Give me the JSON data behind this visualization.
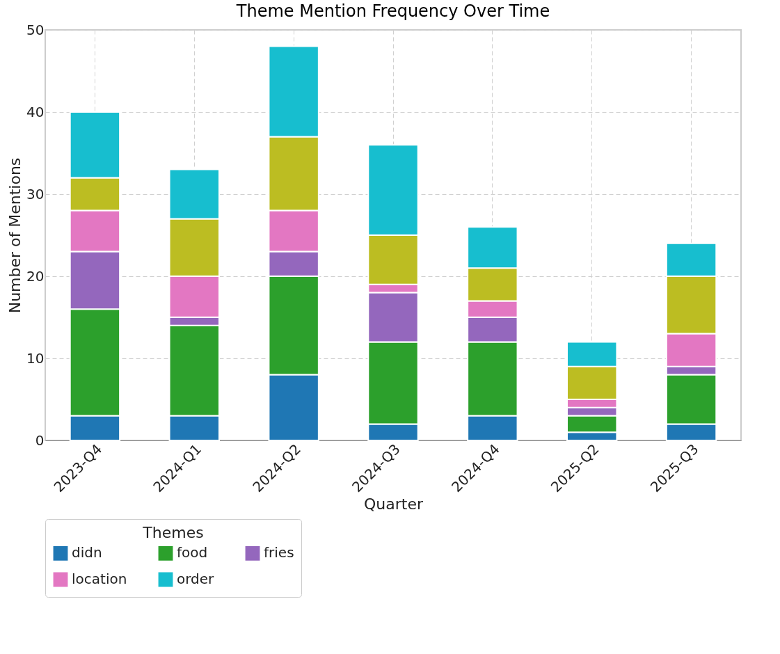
{
  "chart_data": {
    "type": "bar",
    "title": "Theme Mention Frequency Over Time",
    "xlabel": "Quarter",
    "ylabel": "Number of Mentions",
    "legend_title": "Themes",
    "categories": [
      "2023-Q4",
      "2024-Q1",
      "2024-Q2",
      "2024-Q3",
      "2024-Q4",
      "2025-Q2",
      "2025-Q3"
    ],
    "series": [
      {
        "name": "didn",
        "color": "#1f77b4",
        "values": [
          3,
          3,
          8,
          2,
          3,
          1,
          2
        ]
      },
      {
        "name": "food",
        "color": "#2ca02c",
        "values": [
          13,
          11,
          12,
          10,
          9,
          2,
          6
        ]
      },
      {
        "name": "fries",
        "color": "#9467bd",
        "values": [
          7,
          1,
          3,
          6,
          3,
          1,
          1
        ]
      },
      {
        "name": "location",
        "color": "#e377c2",
        "values": [
          5,
          5,
          5,
          1,
          2,
          1,
          4
        ]
      },
      {
        "color": "#bcbd22",
        "values": [
          4,
          7,
          9,
          6,
          4,
          4,
          7
        ]
      },
      {
        "name": "order",
        "color": "#17becf",
        "values": [
          8,
          6,
          11,
          11,
          5,
          3,
          4
        ]
      }
    ],
    "stacked": true,
    "ylim": [
      0,
      50
    ],
    "yticks": [
      0,
      10,
      20,
      30,
      40,
      50
    ],
    "grid": true,
    "legend": "bottom"
  }
}
